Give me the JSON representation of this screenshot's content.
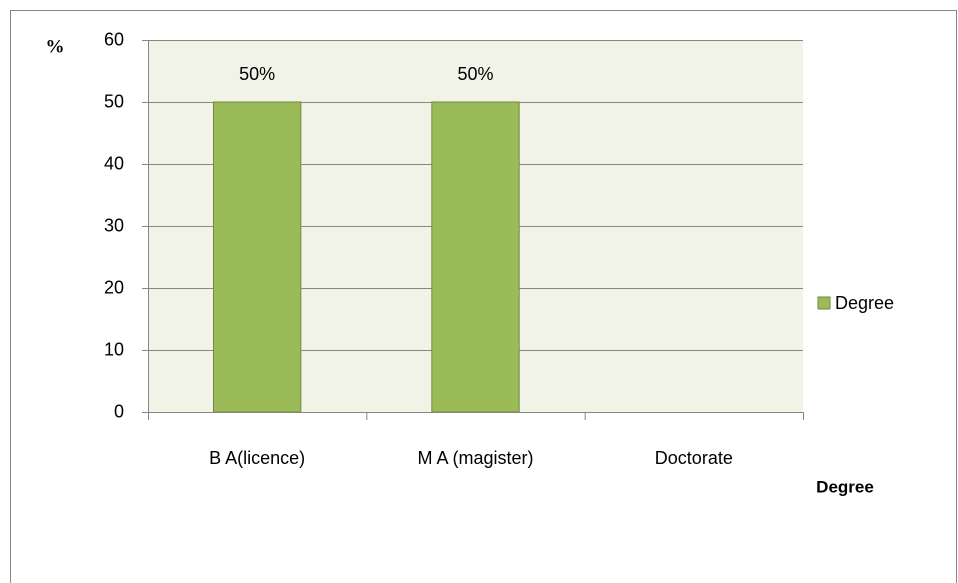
{
  "chart_data": {
    "type": "bar",
    "categories": [
      "B A(licence)",
      "M A (magister)",
      "Doctorate"
    ],
    "series": [
      {
        "name": "Degree",
        "color": "#9bbb59",
        "values": [
          50,
          50,
          0
        ],
        "value_labels": [
          "50%",
          "50%",
          null
        ]
      }
    ],
    "ylabel": "%",
    "xlabel": "Degree",
    "ylim": [
      0,
      60
    ],
    "yticks": [
      0,
      10,
      20,
      30,
      40,
      50,
      60
    ],
    "grid": true,
    "legend": "right"
  }
}
